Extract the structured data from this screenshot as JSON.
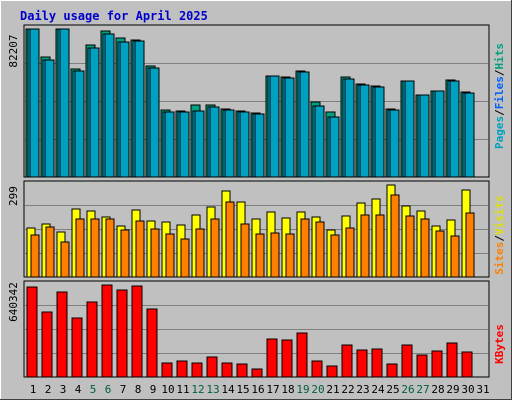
{
  "title": "Daily usage for April 2025",
  "colors": {
    "background": "#c0c0c0",
    "title": "#0000cc",
    "grid": "#808080",
    "hits": "#00a080",
    "files": "#00c0ff",
    "pages": "#00a0c0",
    "visits": "#ffff00",
    "sites": "#ff8000",
    "kbytes": "#ff0000",
    "weekend_label": "#006040",
    "weekday_label": "#000000"
  },
  "chart_data": [
    {
      "type": "bar",
      "panel": "hits-files-pages",
      "ymax_label": "82207",
      "legend": {
        "pages": "Pages",
        "files": "Files",
        "hits": "Hits"
      },
      "x": [
        1,
        2,
        3,
        4,
        5,
        6,
        7,
        8,
        9,
        10,
        11,
        12,
        13,
        14,
        15,
        16,
        17,
        18,
        19,
        20,
        21,
        22,
        23,
        24,
        25,
        26,
        27,
        28,
        29,
        30,
        31
      ],
      "series": [
        {
          "name": "Hits",
          "values": [
            82207,
            66500,
            82207,
            59800,
            73500,
            81100,
            77300,
            76000,
            61400,
            37000,
            36600,
            40200,
            39800,
            37700,
            36600,
            35500,
            56200,
            55600,
            58900,
            41400,
            35900,
            55800,
            51800,
            50700,
            37800,
            53500,
            45600,
            47500,
            53700,
            47300,
            0
          ]
        },
        {
          "name": "Files",
          "values": [
            82207,
            65100,
            82207,
            58800,
            71400,
            79700,
            74800,
            75500,
            60300,
            36200,
            36200,
            36600,
            38900,
            37300,
            36200,
            34800,
            55900,
            54800,
            58100,
            39300,
            33600,
            54600,
            50900,
            50200,
            37400,
            53400,
            45600,
            47700,
            53400,
            46700,
            0
          ]
        },
        {
          "name": "Pages",
          "values": [
            82207,
            65100,
            82207,
            58800,
            71400,
            79700,
            74800,
            75500,
            60300,
            36200,
            36200,
            36600,
            38900,
            37300,
            36200,
            34800,
            55900,
            54800,
            58100,
            39300,
            33600,
            54600,
            50900,
            50200,
            37400,
            53400,
            45600,
            47700,
            53400,
            46700,
            0
          ]
        }
      ]
    },
    {
      "type": "bar",
      "panel": "visits-sites",
      "ymax_label": "299",
      "legend": {
        "sites": "Sites",
        "visits": "Visits"
      },
      "x": [
        1,
        2,
        3,
        4,
        5,
        6,
        7,
        8,
        9,
        10,
        11,
        12,
        13,
        14,
        15,
        16,
        17,
        18,
        19,
        20,
        21,
        22,
        23,
        24,
        25,
        26,
        27,
        28,
        29,
        30,
        31
      ],
      "series": [
        {
          "name": "Visits",
          "values": [
            160,
            172,
            147,
            222,
            214,
            196,
            166,
            219,
            183,
            178,
            168,
            202,
            227,
            279,
            244,
            189,
            212,
            191,
            212,
            196,
            152,
            199,
            242,
            252,
            299,
            232,
            213,
            165,
            186,
            282,
            0
          ]
        },
        {
          "name": "Sites",
          "values": [
            137,
            161,
            114,
            190,
            190,
            190,
            153,
            182,
            156,
            140,
            123,
            157,
            190,
            244,
            173,
            140,
            142,
            140,
            190,
            179,
            136,
            160,
            203,
            202,
            266,
            199,
            190,
            151,
            133,
            207,
            0
          ]
        }
      ]
    },
    {
      "type": "bar",
      "panel": "kbytes",
      "ymax_label": "640342",
      "legend": {
        "kbytes": "KBytes"
      },
      "x": [
        1,
        2,
        3,
        4,
        5,
        6,
        7,
        8,
        9,
        10,
        11,
        12,
        13,
        14,
        15,
        16,
        17,
        18,
        19,
        20,
        21,
        22,
        23,
        24,
        25,
        26,
        27,
        28,
        29,
        30,
        31
      ],
      "series": [
        {
          "name": "KBytes",
          "values": [
            625000,
            450000,
            590000,
            410000,
            525000,
            640342,
            608000,
            630000,
            470000,
            95000,
            110000,
            100000,
            140000,
            100000,
            90000,
            58000,
            265000,
            255000,
            305000,
            108000,
            80000,
            225000,
            190000,
            195000,
            90000,
            225000,
            150000,
            180000,
            235000,
            175000,
            0
          ]
        }
      ]
    }
  ],
  "x_labels": [
    "1",
    "2",
    "3",
    "4",
    "5",
    "6",
    "7",
    "8",
    "9",
    "10",
    "11",
    "12",
    "13",
    "14",
    "15",
    "16",
    "17",
    "18",
    "19",
    "20",
    "21",
    "22",
    "23",
    "24",
    "25",
    "26",
    "27",
    "28",
    "29",
    "30",
    "31"
  ],
  "weekend_days": [
    5,
    6,
    12,
    13,
    19,
    20,
    26,
    27
  ]
}
